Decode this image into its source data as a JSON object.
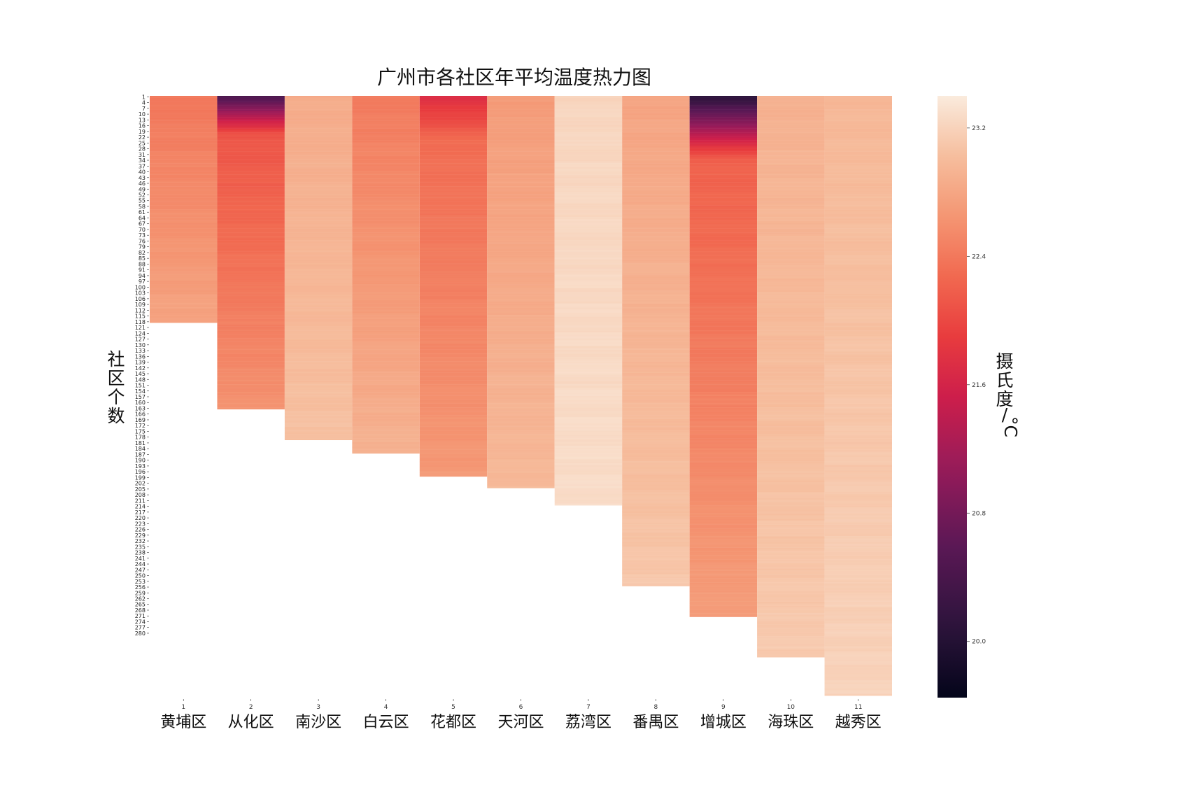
{
  "chart_data": {
    "type": "heatmap",
    "title": "广州市各社区年平均温度热力图",
    "ylabel_chars": [
      "社",
      "区",
      "个",
      "数"
    ],
    "colorbar_label_chars": [
      "摄",
      "氏",
      "度",
      "/",
      "°C"
    ],
    "x_tick_labels": [
      "1",
      "2",
      "3",
      "4",
      "5",
      "6",
      "7",
      "8",
      "9",
      "10",
      "11"
    ],
    "districts": [
      "黄埔区",
      "从化区",
      "南沙区",
      "白云区",
      "花都区",
      "天河区",
      "荔湾区",
      "番禺区",
      "增城区",
      "海珠区",
      "越秀区"
    ],
    "community_counts": [
      118,
      163,
      179,
      186,
      198,
      204,
      213,
      255,
      271,
      292,
      312
    ],
    "temperature_profiles": [
      {
        "district": "黄埔区",
        "first": 22.38,
        "last": 22.78
      },
      {
        "district": "从化区",
        "first": 20.45,
        "mid": 22.1,
        "last": 22.62
      },
      {
        "district": "南沙区",
        "first": 22.85,
        "last": 23.05
      },
      {
        "district": "白云区",
        "first": 22.42,
        "last": 22.92
      },
      {
        "district": "花都区",
        "first": 21.72,
        "mid": 22.3,
        "last": 22.68
      },
      {
        "district": "天河区",
        "first": 22.7,
        "last": 22.98
      },
      {
        "district": "荔湾区",
        "first": 23.22,
        "last": 23.28
      },
      {
        "district": "番禺区",
        "first": 22.78,
        "last": 23.1
      },
      {
        "district": "增城区",
        "first": 20.1,
        "mid": 22.2,
        "last": 22.72
      },
      {
        "district": "海珠区",
        "first": 22.9,
        "last": 23.12
      },
      {
        "district": "越秀区",
        "first": 22.96,
        "last": 23.2
      }
    ],
    "y_tick_labels": [
      "1",
      "4",
      "7",
      "10",
      "13",
      "16",
      "19",
      "22",
      "25",
      "28",
      "31",
      "34",
      "37",
      "40",
      "43",
      "46",
      "49",
      "52",
      "55",
      "58",
      "61",
      "64",
      "67",
      "70",
      "73",
      "76",
      "79",
      "82",
      "85",
      "88",
      "91",
      "94",
      "97",
      "100",
      "103",
      "106",
      "109",
      "112",
      "115",
      "118",
      "121",
      "124",
      "127",
      "130",
      "133",
      "136",
      "139",
      "142",
      "145",
      "148",
      "151",
      "154",
      "157",
      "160",
      "163",
      "166",
      "169",
      "172",
      "175",
      "178",
      "181",
      "184",
      "187",
      "190",
      "193",
      "196",
      "199",
      "202",
      "205",
      "208",
      "211",
      "214",
      "217",
      "220",
      "223",
      "226",
      "229",
      "232",
      "235",
      "238",
      "241",
      "244",
      "247",
      "250",
      "253",
      "256",
      "259",
      "262",
      "265",
      "268",
      "271",
      "274",
      "277",
      "280"
    ],
    "y_max": 313,
    "colorbar": {
      "vmin": 19.65,
      "vmax": 23.4,
      "ticks": [
        "20.0",
        "20.8",
        "21.6",
        "22.4",
        "23.2"
      ]
    },
    "colormap": "rocket",
    "grid": false
  }
}
